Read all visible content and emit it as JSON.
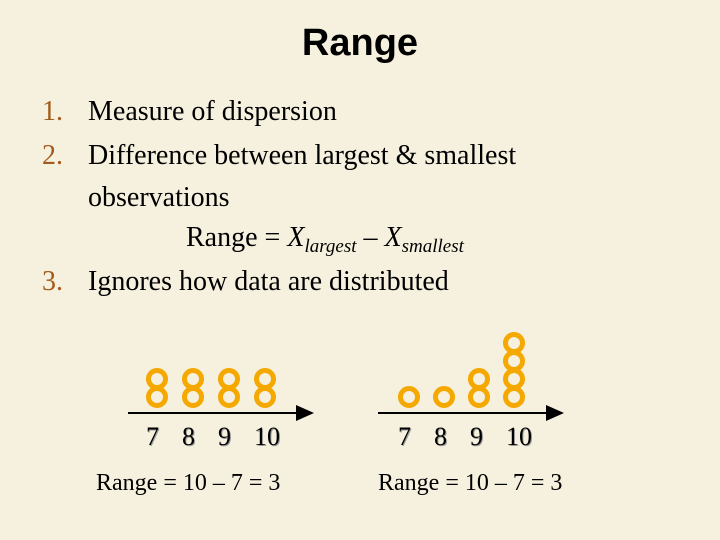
{
  "slide": {
    "title": "Range",
    "items": [
      {
        "num": "1.",
        "text": "Measure of dispersion"
      },
      {
        "num": "2.",
        "text": "Difference between largest & smallest",
        "cont": "observations"
      },
      {
        "num": "3.",
        "text": "Ignores how data are distributed"
      }
    ],
    "formula": {
      "lhs": "Range = ",
      "x1": "X",
      "sub1": "largest",
      "minus": " – ",
      "x2": "X",
      "sub2": "smallest"
    }
  },
  "charts": [
    {
      "ticks": [
        "7",
        "8",
        "9",
        "10"
      ],
      "counts": [
        2,
        2,
        2,
        2
      ],
      "range_text": "Range = 10 – 7 = 3"
    },
    {
      "ticks": [
        "7",
        "8",
        "9",
        "10"
      ],
      "counts": [
        1,
        1,
        2,
        4
      ],
      "range_text": "Range = 10 – 7 = 3"
    }
  ],
  "colors": {
    "dot_outer": "#f5a800",
    "dot_inner": "#f5f1de",
    "arrow": "#000000"
  }
}
